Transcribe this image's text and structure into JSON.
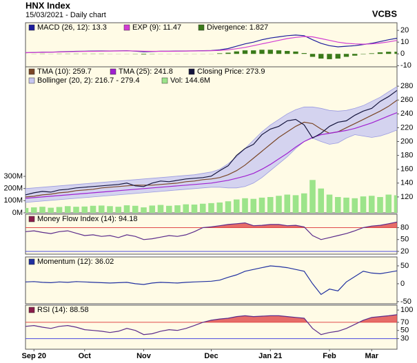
{
  "header": {
    "title": "HNX Index",
    "subtitle": "15/03/2021 - Daily chart",
    "source": "VCBS"
  },
  "chart_data": [
    {
      "type": "line",
      "ylim": [
        -11,
        26.5
      ],
      "yticks": [
        -10,
        0,
        10,
        20
      ],
      "series": [
        {
          "name": "MACD (26, 12): 13.3",
          "color": "#1c1c9c",
          "values": [
            1,
            1.2,
            1.5,
            1.5,
            1.8,
            2,
            2.2,
            2.3,
            2.4,
            2.5,
            2.5,
            2.6,
            2.7,
            2.3,
            1.8,
            2,
            2.3,
            2.3,
            2.4,
            2.5,
            2.6,
            2.7,
            2.8,
            3.5,
            4.5,
            6.5,
            8.5,
            10,
            12,
            13.5,
            14.5,
            15.5,
            16,
            15.5,
            12,
            9,
            7,
            6,
            6.5,
            7,
            8,
            9,
            10.5,
            12,
            13.3
          ]
        },
        {
          "name": "EXP (9): 11.47",
          "color": "#d23cd2",
          "values": [
            1,
            1.1,
            1.3,
            1.4,
            1.6,
            1.8,
            2,
            2.1,
            2.2,
            2.3,
            2.4,
            2.5,
            2.6,
            2.5,
            2.3,
            2.2,
            2.2,
            2.2,
            2.3,
            2.4,
            2.5,
            2.6,
            2.7,
            3,
            3.5,
            4.4,
            5.5,
            7,
            8.5,
            10,
            11.5,
            13,
            14,
            14.8,
            14.5,
            13,
            11.5,
            10,
            9,
            8.5,
            8.3,
            8.5,
            9.2,
            10.2,
            11.47
          ]
        },
        {
          "name": "Divergence: 1.827",
          "color": "#3a7a1a",
          "type": "bar",
          "values": [
            0,
            0.1,
            0.2,
            0.1,
            0.2,
            0.2,
            0.2,
            0.2,
            0.2,
            0.2,
            0.1,
            0.1,
            0.1,
            -0.2,
            -0.5,
            -0.2,
            0.1,
            0.1,
            0.1,
            0.1,
            0.1,
            0.1,
            0.1,
            0.5,
            1,
            2.1,
            3,
            3,
            3.5,
            3.5,
            3,
            2.5,
            2,
            0.7,
            -2.5,
            -4,
            -4.5,
            -4,
            -2.5,
            -1.5,
            -0.3,
            0.5,
            1.3,
            1.8,
            1.827
          ]
        }
      ]
    },
    {
      "type": "line",
      "ylim": [
        97,
        308
      ],
      "yticks": [
        120,
        140,
        160,
        180,
        200,
        220,
        240,
        260,
        280
      ],
      "y2lim": [
        0,
        1200
      ],
      "y2ticks": [
        {
          "value": 0,
          "label": "0M"
        },
        {
          "value": 100,
          "label": "100M"
        },
        {
          "value": 200,
          "label": "200M"
        },
        {
          "value": 300,
          "label": "300M"
        }
      ],
      "series": [
        {
          "name": "TMA (10): 259.7",
          "color": "#7a4626",
          "values": [
            120,
            121,
            123,
            124,
            126,
            127,
            129,
            130,
            131,
            133,
            134,
            135,
            136,
            137,
            137,
            137,
            138,
            139,
            140,
            142,
            143,
            145,
            146,
            148,
            152,
            158,
            166,
            176,
            186,
            196,
            206,
            214,
            222,
            228,
            226,
            218,
            212,
            214,
            220,
            226,
            232,
            238,
            244,
            251,
            259.7
          ]
        },
        {
          "name": "TMA (25): 241.8",
          "color": "#a020d0",
          "values": [
            118,
            119,
            120,
            121,
            122,
            123,
            124,
            125,
            126,
            127,
            128,
            129,
            130,
            131,
            132,
            133,
            134,
            135,
            136,
            137,
            138,
            139,
            140,
            142,
            144,
            147,
            150,
            154,
            160,
            167,
            175,
            183,
            192,
            200,
            206,
            210,
            212,
            214,
            216,
            219,
            223,
            227,
            232,
            237,
            241.8
          ]
        },
        {
          "name": "Closing Price: 273.9",
          "color": "#14143c",
          "values": [
            123,
            126,
            128,
            127,
            130,
            131,
            133,
            134,
            135,
            136,
            137,
            138,
            140,
            136,
            135,
            140,
            143,
            142,
            144,
            146,
            147,
            148,
            150,
            158,
            165,
            180,
            190,
            196,
            210,
            218,
            222,
            230,
            232,
            224,
            205,
            212,
            222,
            228,
            230,
            238,
            244,
            248,
            258,
            265,
            273.9
          ]
        },
        {
          "name": "Bollinger (20, 2): 216.7 - 279.4",
          "color": "#c6c6f2",
          "type": "band",
          "upper": [
            132,
            133,
            134,
            135,
            136,
            137,
            138,
            139,
            140,
            141,
            142,
            143,
            144,
            145,
            146,
            147,
            148,
            149,
            150,
            151,
            152,
            154,
            156,
            160,
            168,
            178,
            190,
            202,
            214,
            224,
            232,
            240,
            246,
            250,
            250,
            248,
            245,
            244,
            245,
            248,
            252,
            258,
            264,
            272,
            279.4
          ],
          "lower": [
            112,
            113,
            114,
            115,
            116,
            117,
            118,
            119,
            120,
            121,
            122,
            123,
            124,
            125,
            126,
            127,
            128,
            129,
            130,
            131,
            132,
            133,
            134,
            134,
            133,
            133,
            135,
            140,
            148,
            158,
            168,
            178,
            190,
            200,
            205,
            200,
            196,
            198,
            205,
            210,
            208,
            206,
            208,
            212,
            216.7
          ]
        },
        {
          "name": "Vol: 144.6M",
          "color": "#9ce48a",
          "type": "bar",
          "axis": "y2",
          "values": [
            40,
            45,
            50,
            42,
            48,
            55,
            50,
            52,
            58,
            60,
            55,
            50,
            62,
            58,
            45,
            60,
            65,
            58,
            62,
            70,
            68,
            75,
            80,
            85,
            95,
            110,
            120,
            115,
            125,
            130,
            140,
            150,
            145,
            160,
            270,
            200,
            150,
            130,
            125,
            120,
            135,
            140,
            130,
            150,
            144.6
          ]
        }
      ]
    },
    {
      "type": "line",
      "ylim": [
        13,
        114
      ],
      "yticks": [
        20,
        50,
        80
      ],
      "thresholds": [
        {
          "value": 80,
          "color": "#e04848",
          "fill": "above"
        },
        {
          "value": 20,
          "color": "#4848e0",
          "fill": "below"
        }
      ],
      "series": [
        {
          "name": "Money Flow Index (14): 94.18",
          "color": "#5a2a8a",
          "legend_color": "#8a1c4a",
          "values": [
            70,
            72,
            68,
            65,
            70,
            72,
            66,
            60,
            62,
            58,
            60,
            55,
            62,
            58,
            50,
            52,
            56,
            60,
            58,
            62,
            70,
            80,
            82,
            85,
            88,
            90,
            92,
            85,
            86,
            88,
            88,
            85,
            86,
            82,
            60,
            50,
            55,
            60,
            65,
            72,
            80,
            84,
            86,
            90,
            94.18
          ]
        }
      ]
    },
    {
      "type": "line",
      "ylim": [
        -56,
        75
      ],
      "yticks": [
        -50,
        0,
        50
      ],
      "series": [
        {
          "name": "Momentum (12): 36.02",
          "color": "#2030a0",
          "values": [
            5,
            6,
            4,
            3,
            5,
            4,
            6,
            5,
            4,
            3,
            2,
            3,
            4,
            0,
            -2,
            2,
            4,
            3,
            2,
            4,
            5,
            6,
            7,
            10,
            18,
            25,
            35,
            40,
            45,
            50,
            48,
            45,
            40,
            35,
            0,
            -30,
            -15,
            -20,
            5,
            20,
            35,
            30,
            28,
            32,
            36.02
          ]
        }
      ]
    },
    {
      "type": "line",
      "ylim": [
        4,
        112
      ],
      "yticks": [
        30,
        50,
        70,
        100
      ],
      "thresholds": [
        {
          "value": 70,
          "color": "#e04848",
          "fill": "above"
        },
        {
          "value": 30,
          "color": "#4848e0",
          "fill": "below"
        }
      ],
      "categories": [
        null,
        "Sep 20",
        null,
        null,
        null,
        null,
        null,
        "Oct",
        null,
        null,
        null,
        null,
        null,
        null,
        "Nov",
        null,
        null,
        null,
        null,
        null,
        null,
        null,
        "Dec",
        null,
        null,
        null,
        null,
        null,
        null,
        "Jan 21",
        null,
        null,
        null,
        null,
        null,
        null,
        "Feb",
        null,
        null,
        null,
        null,
        "Mar",
        null,
        null,
        null
      ],
      "series": [
        {
          "name": "RSI (14): 88.58",
          "color": "#5a2a8a",
          "legend_color": "#8a1c4a",
          "values": [
            60,
            62,
            58,
            55,
            60,
            62,
            58,
            52,
            50,
            48,
            45,
            48,
            55,
            50,
            40,
            42,
            48,
            52,
            50,
            55,
            62,
            70,
            75,
            78,
            80,
            84,
            86,
            84,
            85,
            86,
            86,
            84,
            82,
            80,
            55,
            40,
            45,
            48,
            55,
            65,
            75,
            82,
            84,
            86,
            88.58
          ]
        }
      ]
    }
  ]
}
